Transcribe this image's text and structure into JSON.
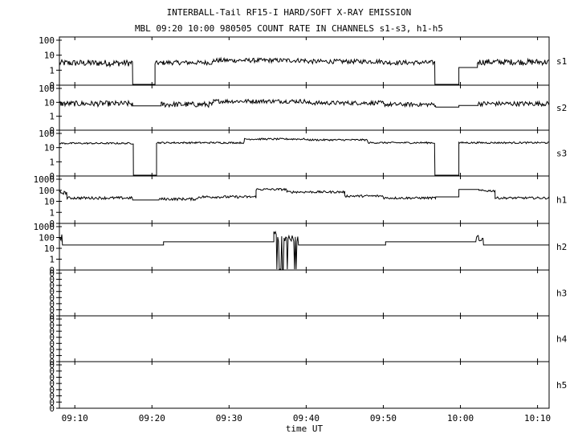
{
  "title": "INTERBALL-Tail RF15-I HARD/SOFT X-RAY EMISSION",
  "subtitle": "MBL 09:20 10:00 980505  COUNT RATE IN CHANNELS s1-s3, h1-h5",
  "chart_data": {
    "type": "line",
    "title": "INTERBALL-Tail RF15-I HARD/SOFT X-RAY EMISSION",
    "subtitle": "MBL 09:20 10:00 980505  COUNT RATE IN CHANNELS s1-s3, h1-h5",
    "xlabel": "time UT",
    "x_ticks": [
      "09:10",
      "09:20",
      "09:30",
      "09:40",
      "09:50",
      "10:00",
      "10:10"
    ],
    "x_tick_minutes": [
      10,
      20,
      30,
      40,
      50,
      60,
      70
    ],
    "xlim_minutes": [
      8,
      71.5
    ],
    "y_scale": "log",
    "grid": false,
    "panels": [
      {
        "name": "s1",
        "y_ticks": [
          "100",
          "10",
          "1",
          "0"
        ],
        "segments": [
          {
            "from": 8.0,
            "to": 17.5,
            "level": 3,
            "noise": 0.22
          },
          {
            "from": 17.5,
            "to": 17.7,
            "level": 0,
            "noise": 0
          },
          {
            "from": 20.2,
            "to": 20.4,
            "level": 0,
            "noise": 0
          },
          {
            "from": 20.4,
            "to": 21.5,
            "level": 3,
            "noise": 0.15
          },
          {
            "from": 21.5,
            "to": 28.0,
            "level": 3.2,
            "noise": 0.15
          },
          {
            "from": 28.0,
            "to": 40.0,
            "level": 4.5,
            "noise": 0.15
          },
          {
            "from": 40.0,
            "to": 50.0,
            "level": 3.8,
            "noise": 0.15
          },
          {
            "from": 50.0,
            "to": 56.7,
            "level": 3.2,
            "noise": 0.15
          },
          {
            "from": 56.7,
            "to": 56.9,
            "level": 0,
            "noise": 0
          },
          {
            "from": 59.6,
            "to": 59.8,
            "level": 0,
            "noise": 0
          },
          {
            "from": 59.8,
            "to": 62.2,
            "level": 1.5,
            "noise": 0
          },
          {
            "from": 62.2,
            "to": 71.5,
            "level": 3.5,
            "noise": 0.2
          }
        ]
      },
      {
        "name": "s2",
        "y_ticks": [
          "100",
          "10",
          "1",
          "0"
        ],
        "segments": [
          {
            "from": 8.0,
            "to": 17.5,
            "level": 8,
            "noise": 0.2
          },
          {
            "from": 17.5,
            "to": 21.2,
            "level": 5.5,
            "noise": 0
          },
          {
            "from": 21.2,
            "to": 28.0,
            "level": 7,
            "noise": 0.2
          },
          {
            "from": 28.0,
            "to": 40.0,
            "level": 12,
            "noise": 0.15
          },
          {
            "from": 40.0,
            "to": 50.0,
            "level": 9,
            "noise": 0.15
          },
          {
            "from": 50.0,
            "to": 56.8,
            "level": 7,
            "noise": 0.15
          },
          {
            "from": 56.8,
            "to": 59.8,
            "level": 4.5,
            "noise": 0
          },
          {
            "from": 59.8,
            "to": 62.3,
            "level": 6,
            "noise": 0
          },
          {
            "from": 62.3,
            "to": 71.5,
            "level": 8,
            "noise": 0.17
          }
        ]
      },
      {
        "name": "s3",
        "y_ticks": [
          "100",
          "10",
          "1",
          "0"
        ],
        "segments": [
          {
            "from": 8.0,
            "to": 17.6,
            "level": 20,
            "noise": 0.06
          },
          {
            "from": 17.6,
            "to": 17.8,
            "level": 0,
            "noise": 0
          },
          {
            "from": 20.4,
            "to": 20.6,
            "level": 0,
            "noise": 0
          },
          {
            "from": 20.6,
            "to": 32.0,
            "level": 22,
            "noise": 0.06
          },
          {
            "from": 32.0,
            "to": 40.0,
            "level": 40,
            "noise": 0.06
          },
          {
            "from": 40.0,
            "to": 48.0,
            "level": 35,
            "noise": 0.06
          },
          {
            "from": 48.0,
            "to": 56.7,
            "level": 22,
            "noise": 0.06
          },
          {
            "from": 56.7,
            "to": 56.9,
            "level": 0,
            "noise": 0
          },
          {
            "from": 59.6,
            "to": 59.8,
            "level": 0,
            "noise": 0
          },
          {
            "from": 59.8,
            "to": 71.5,
            "level": 22,
            "noise": 0.06
          }
        ]
      },
      {
        "name": "h1",
        "y_ticks": [
          "1000",
          "100",
          "10",
          "1",
          "0"
        ],
        "segments": [
          {
            "from": 8.0,
            "to": 9.0,
            "level": 60,
            "noise": 0.15
          },
          {
            "from": 9.0,
            "to": 17.5,
            "level": 20,
            "noise": 0.12
          },
          {
            "from": 17.5,
            "to": 20.9,
            "level": 13,
            "noise": 0
          },
          {
            "from": 20.9,
            "to": 26.0,
            "level": 16,
            "noise": 0.12
          },
          {
            "from": 26.0,
            "to": 33.5,
            "level": 25,
            "noise": 0.12
          },
          {
            "from": 33.5,
            "to": 37.5,
            "level": 120,
            "noise": 0.1
          },
          {
            "from": 37.5,
            "to": 45.0,
            "level": 70,
            "noise": 0.1
          },
          {
            "from": 45.0,
            "to": 50.0,
            "level": 30,
            "noise": 0.1
          },
          {
            "from": 50.0,
            "to": 56.8,
            "level": 20,
            "noise": 0.1
          },
          {
            "from": 56.8,
            "to": 59.8,
            "level": 25,
            "noise": 0
          },
          {
            "from": 59.8,
            "to": 62.4,
            "level": 120,
            "noise": 0
          },
          {
            "from": 62.4,
            "to": 64.5,
            "level": 90,
            "noise": 0.1
          },
          {
            "from": 64.5,
            "to": 71.5,
            "level": 20,
            "noise": 0.1
          }
        ]
      },
      {
        "name": "h2",
        "y_ticks": [
          "1000",
          "100",
          "10",
          "1",
          "0"
        ],
        "segments": [
          {
            "from": 8.0,
            "to": 8.4,
            "level": 100,
            "noise": 0.3
          },
          {
            "from": 8.4,
            "to": 21.5,
            "level": 20,
            "noise": 0
          },
          {
            "from": 21.5,
            "to": 35.8,
            "level": 40,
            "noise": 0
          },
          {
            "from": 35.8,
            "to": 36.2,
            "level": 250,
            "noise": 0.2
          },
          {
            "from": 36.2,
            "to": 39.0,
            "level": 80,
            "noise": 0.3,
            "dropouts": true
          },
          {
            "from": 39.0,
            "to": 50.3,
            "level": 20,
            "noise": 0
          },
          {
            "from": 50.3,
            "to": 62.0,
            "level": 40,
            "noise": 0
          },
          {
            "from": 62.0,
            "to": 63.0,
            "level": 80,
            "noise": 0.3,
            "dropouts": true
          },
          {
            "from": 63.0,
            "to": 71.5,
            "level": 20,
            "noise": 0
          }
        ]
      },
      {
        "name": "h3",
        "y_ticks": [
          "0",
          "0",
          "0",
          "0",
          "0",
          "0",
          "0",
          "0"
        ],
        "segments": []
      },
      {
        "name": "h4",
        "y_ticks": [
          "0",
          "0",
          "0",
          "0",
          "0",
          "0",
          "0",
          "0"
        ],
        "segments": []
      },
      {
        "name": "h5",
        "y_ticks": [
          "0",
          "0",
          "0",
          "0",
          "0",
          "0",
          "0",
          "0"
        ],
        "segments": []
      }
    ]
  }
}
